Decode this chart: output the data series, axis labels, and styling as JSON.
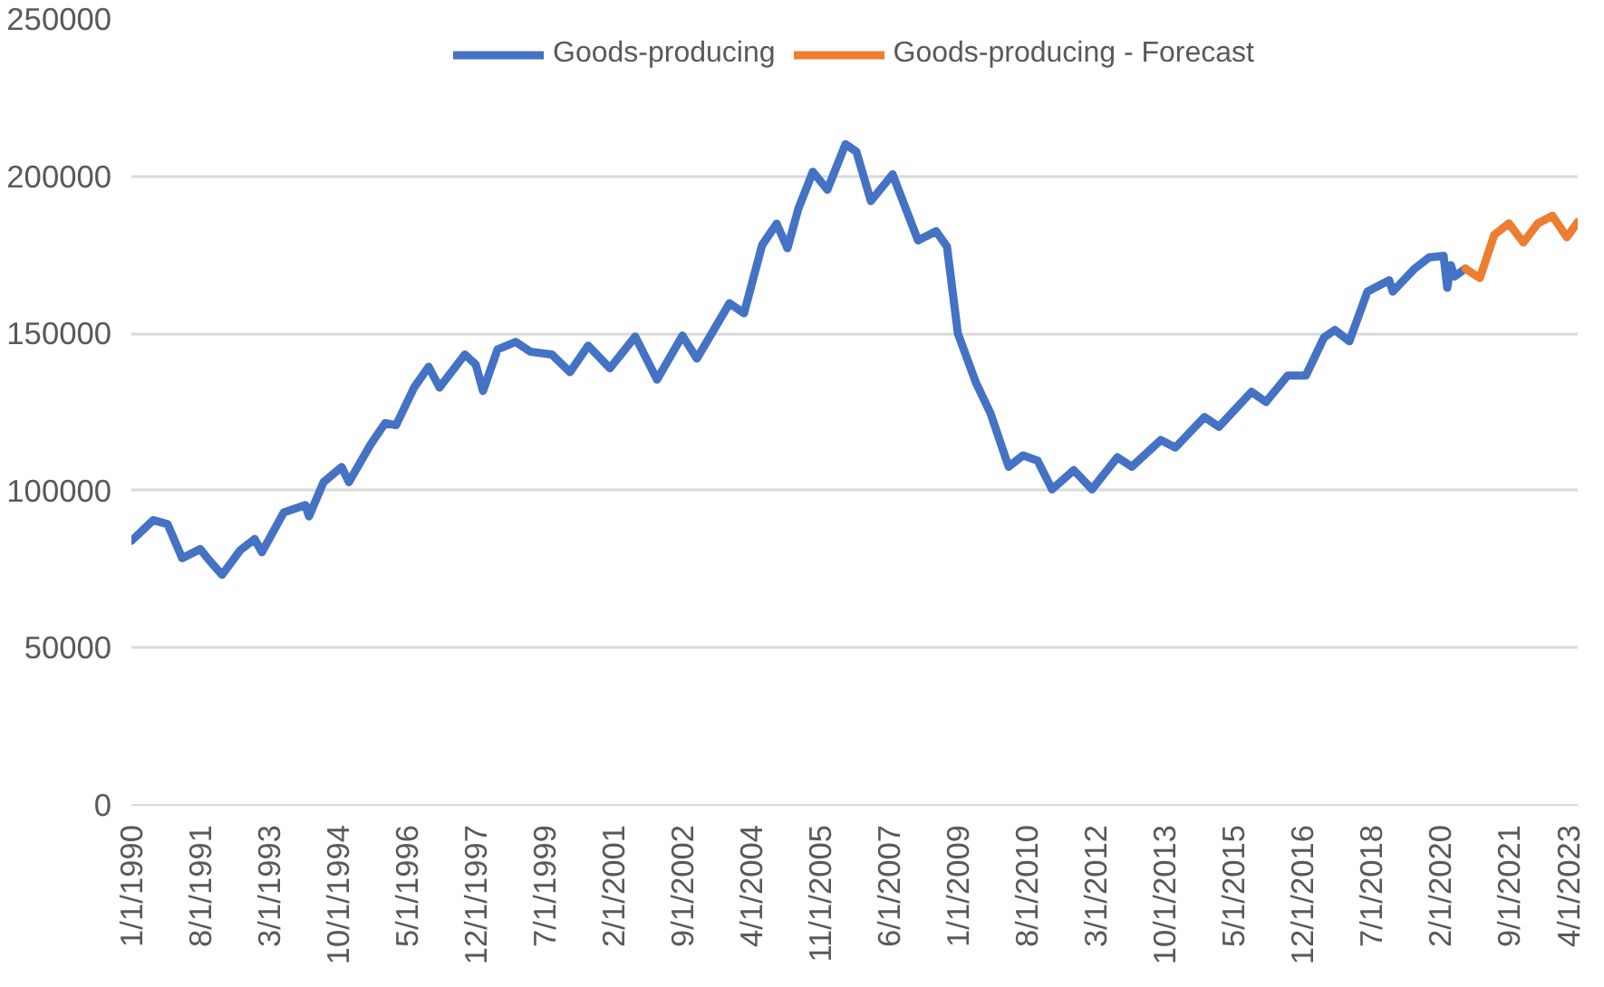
{
  "chart_data": {
    "type": "line",
    "legend": "top",
    "grid": "y",
    "marker": "none",
    "line_style": "solid",
    "xlim": [
      "1990-01",
      "2023-04"
    ],
    "xticks": [
      {
        "value": "1990-01",
        "label": "1/1/1990"
      },
      {
        "value": "1991-08",
        "label": "8/1/1991"
      },
      {
        "value": "1993-03",
        "label": "3/1/1993"
      },
      {
        "value": "1994-10",
        "label": "10/1/1994"
      },
      {
        "value": "1996-05",
        "label": "5/1/1996"
      },
      {
        "value": "1997-12",
        "label": "12/1/1997"
      },
      {
        "value": "1999-07",
        "label": "7/1/1999"
      },
      {
        "value": "2001-02",
        "label": "2/1/2001"
      },
      {
        "value": "2002-09",
        "label": "9/1/2002"
      },
      {
        "value": "2004-04",
        "label": "4/1/2004"
      },
      {
        "value": "2005-11",
        "label": "11/1/2005"
      },
      {
        "value": "2007-06",
        "label": "6/1/2007"
      },
      {
        "value": "2009-01",
        "label": "1/1/2009"
      },
      {
        "value": "2010-08",
        "label": "8/1/2010"
      },
      {
        "value": "2012-03",
        "label": "3/1/2012"
      },
      {
        "value": "2013-10",
        "label": "10/1/2013"
      },
      {
        "value": "2015-05",
        "label": "5/1/2015"
      },
      {
        "value": "2016-12",
        "label": "12/1/2016"
      },
      {
        "value": "2018-07",
        "label": "7/1/2018"
      },
      {
        "value": "2020-02",
        "label": "2/1/2020"
      },
      {
        "value": "2021-09",
        "label": "9/1/2021"
      },
      {
        "value": "2023-04",
        "label": "4/1/2023"
      }
    ],
    "ylim": [
      0,
      250000
    ],
    "yticks": [
      0,
      50000,
      100000,
      150000,
      200000,
      250000
    ],
    "series": [
      {
        "name": "Goods-producing",
        "color": "#4472c4",
        "x": [
          "1990-01",
          "1990-07",
          "1990-11",
          "1991-03",
          "1991-08",
          "1991-10",
          "1992-02",
          "1992-07",
          "1992-11",
          "1993-01",
          "1993-07",
          "1994-01",
          "1994-02",
          "1994-06",
          "1994-11",
          "1995-01",
          "1995-07",
          "1995-11",
          "1996-02",
          "1996-07",
          "1996-11",
          "1997-02",
          "1997-09",
          "1997-12",
          "1998-02",
          "1998-06",
          "1998-11",
          "1999-03",
          "1999-09",
          "2000-02",
          "2000-07",
          "2001-01",
          "2001-08",
          "2002-02",
          "2002-09",
          "2003-01",
          "2003-10",
          "2004-02",
          "2004-07",
          "2004-11",
          "2005-02",
          "2005-05",
          "2005-09",
          "2006-01",
          "2006-06",
          "2006-09",
          "2007-01",
          "2007-07",
          "2008-02",
          "2008-07",
          "2008-10",
          "2009-01",
          "2009-06",
          "2009-10",
          "2010-03",
          "2010-07",
          "2010-11",
          "2011-03",
          "2011-09",
          "2012-02",
          "2012-09",
          "2013-01",
          "2013-09",
          "2014-01",
          "2014-09",
          "2015-01",
          "2015-10",
          "2016-02",
          "2016-08",
          "2017-01",
          "2017-06",
          "2017-09",
          "2018-01",
          "2018-06",
          "2018-12",
          "2019-01",
          "2019-07",
          "2019-11",
          "2020-03",
          "2020-04",
          "2020-05",
          "2020-06",
          "2020-09"
        ],
        "values": [
          84000,
          90600,
          89300,
          78500,
          81400,
          78500,
          73200,
          81000,
          84600,
          80400,
          93000,
          95400,
          91800,
          102700,
          107500,
          102700,
          114700,
          121500,
          120800,
          132800,
          139400,
          132800,
          143300,
          140100,
          131700,
          144900,
          147300,
          144200,
          143300,
          137700,
          146100,
          138900,
          149000,
          135300,
          149300,
          142000,
          159600,
          156400,
          178100,
          184900,
          177100,
          189700,
          201400,
          195700,
          210200,
          207800,
          192100,
          200600,
          179600,
          182500,
          177600,
          150000,
          134300,
          124600,
          107600,
          111200,
          109500,
          100400,
          106500,
          100400,
          110600,
          107600,
          116100,
          113700,
          123400,
          120300,
          131400,
          128200,
          136600,
          136600,
          148700,
          151100,
          147500,
          163300,
          166900,
          163300,
          170600,
          174200,
          174700,
          164500,
          171700,
          168100,
          170600
        ]
      },
      {
        "name": "Goods-producing - Forecast",
        "color": "#ed7d31",
        "x": [
          "2020-09",
          "2021-01",
          "2021-05",
          "2021-09",
          "2022-01",
          "2022-05",
          "2022-09",
          "2023-01",
          "2023-04"
        ],
        "values": [
          170600,
          167600,
          181400,
          185000,
          178900,
          185000,
          187400,
          180600,
          185400
        ]
      }
    ]
  }
}
